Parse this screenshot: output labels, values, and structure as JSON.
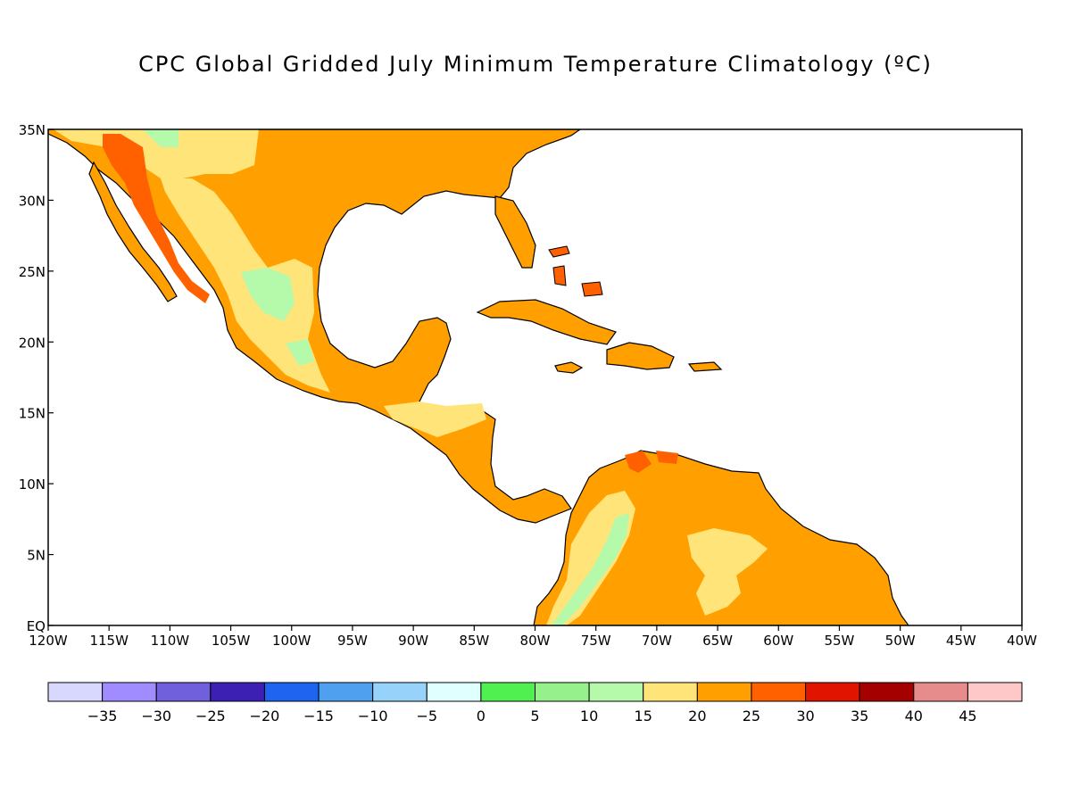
{
  "title": "CPC Global Gridded July Minimum Temperature Climatology (ºC)",
  "map": {
    "lon_range": [
      -120,
      -40
    ],
    "lat_range": [
      0,
      35
    ],
    "lon_ticks": [
      "120W",
      "115W",
      "110W",
      "105W",
      "100W",
      "95W",
      "90W",
      "85W",
      "80W",
      "75W",
      "70W",
      "65W",
      "60W",
      "55W",
      "50W",
      "45W",
      "40W"
    ],
    "lat_ticks": [
      "EQ",
      "5N",
      "10N",
      "15N",
      "20N",
      "25N",
      "30N",
      "35N"
    ],
    "ocean_color": "#ffffff",
    "coast_color": "#000000",
    "land_fill_dominant": "#ffa000"
  },
  "colorbar": {
    "colors": [
      "#d8d8ff",
      "#a08cff",
      "#7060dc",
      "#3c20b4",
      "#1e64f0",
      "#50a0f0",
      "#96d2fa",
      "#e0ffff",
      "#50f050",
      "#96f08c",
      "#b4faaa",
      "#ffe47a",
      "#ffa000",
      "#ff6000",
      "#e11400",
      "#a50000",
      "#e68c8c",
      "#ffc8c8"
    ],
    "labels": [
      "−35",
      "−30",
      "−25",
      "−20",
      "−15",
      "−10",
      "−5",
      "0",
      "5",
      "10",
      "15",
      "20",
      "25",
      "30",
      "35",
      "40",
      "45"
    ]
  }
}
